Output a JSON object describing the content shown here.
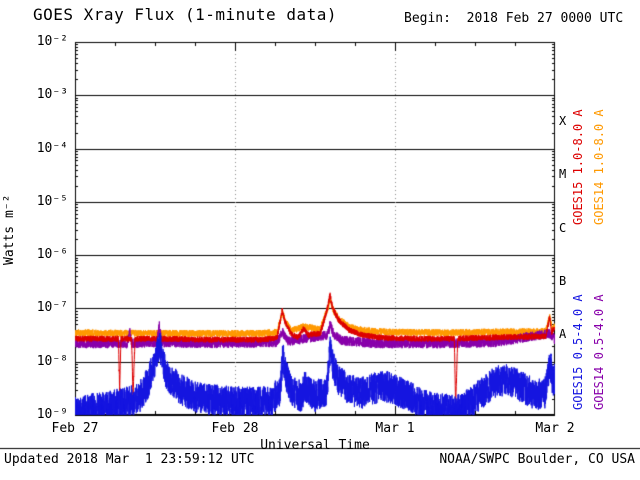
{
  "header": {
    "title": "GOES Xray Flux (1-minute data)",
    "begin_label": "Begin:  2018 Feb 27 0000 UTC"
  },
  "footer": {
    "updated": "Updated 2018 Mar  1 23:59:12 UTC",
    "credit": "NOAA/SWPC Boulder, CO USA"
  },
  "chart_data": {
    "type": "line",
    "title": "GOES Xray Flux (1-minute data)",
    "xlabel": "Universal Time",
    "ylabel": "Watts m⁻²",
    "x_range_hours": [
      0,
      72
    ],
    "y_range_log10": [
      -9,
      -2
    ],
    "y_scale": "log",
    "grid": {
      "horizontal": "solid line per decade",
      "vertical": "dotted at day boundaries"
    },
    "x_ticks": [
      {
        "hour": 0,
        "label": "Feb 27"
      },
      {
        "hour": 24,
        "label": "Feb 28"
      },
      {
        "hour": 48,
        "label": "Mar 1"
      },
      {
        "hour": 72,
        "label": "Mar 2"
      }
    ],
    "y_ticks": [
      {
        "exp": -2,
        "label": "10⁻²"
      },
      {
        "exp": -3,
        "label": "10⁻³"
      },
      {
        "exp": -4,
        "label": "10⁻⁴"
      },
      {
        "exp": -5,
        "label": "10⁻⁵"
      },
      {
        "exp": -6,
        "label": "10⁻⁶"
      },
      {
        "exp": -7,
        "label": "10⁻⁷"
      },
      {
        "exp": -8,
        "label": "10⁻⁸"
      },
      {
        "exp": -9,
        "label": "10⁻⁹"
      }
    ],
    "flux_classes": [
      {
        "label": "X",
        "band_log10": [
          -4,
          -3
        ]
      },
      {
        "label": "M",
        "band_log10": [
          -5,
          -4
        ]
      },
      {
        "label": "C",
        "band_log10": [
          -6,
          -5
        ]
      },
      {
        "label": "B",
        "band_log10": [
          -7,
          -6
        ]
      },
      {
        "label": "A",
        "band_log10": [
          -8,
          -7
        ]
      }
    ],
    "series": [
      {
        "name": "GOES14 1.0-8.0 A",
        "color": "#ff9900",
        "noise_log10": 0.065,
        "keypoints": [
          [
            0,
            3.5e-08
          ],
          [
            10,
            3.4e-08
          ],
          [
            20,
            3.4e-08
          ],
          [
            28,
            3.4e-08
          ],
          [
            30.3,
            3.6e-08
          ],
          [
            31.1,
            8.5e-08
          ],
          [
            31.6,
            5.5e-08
          ],
          [
            32.5,
            3.8e-08
          ],
          [
            34.3,
            4.6e-08
          ],
          [
            36.8,
            4e-08
          ],
          [
            37.9,
            1e-07
          ],
          [
            38.3,
            1.5e-07
          ],
          [
            38.7,
            9.5e-08
          ],
          [
            39.5,
            6.5e-08
          ],
          [
            41,
            4.6e-08
          ],
          [
            43,
            3.9e-08
          ],
          [
            47,
            3.6e-08
          ],
          [
            55,
            3.5e-08
          ],
          [
            62,
            3.6e-08
          ],
          [
            70.6,
            3.7e-08
          ],
          [
            71.2,
            7e-08
          ],
          [
            71.6,
            4.2e-08
          ],
          [
            72,
            5e-08
          ]
        ]
      },
      {
        "name": "GOES14 0.5-4.0 A",
        "color": "#8800aa",
        "noise_log10": 0.09,
        "keypoints": [
          [
            0,
            2.2e-08
          ],
          [
            7.9,
            2.2e-08
          ],
          [
            8.2,
            3.8e-08
          ],
          [
            8.5,
            2.2e-08
          ],
          [
            12.3,
            2.3e-08
          ],
          [
            12.65,
            4.8e-08
          ],
          [
            13.0,
            2.3e-08
          ],
          [
            20,
            2.2e-08
          ],
          [
            30.3,
            2.3e-08
          ],
          [
            31.1,
            3.6e-08
          ],
          [
            32,
            2.4e-08
          ],
          [
            37.9,
            3.2e-08
          ],
          [
            38.3,
            5e-08
          ],
          [
            38.8,
            3.2e-08
          ],
          [
            40,
            2.5e-08
          ],
          [
            45,
            2.2e-08
          ],
          [
            55,
            2.2e-08
          ],
          [
            63,
            2.3e-08
          ],
          [
            71.2,
            3.4e-08
          ],
          [
            72,
            2.6e-08
          ]
        ]
      },
      {
        "name": "GOES15 1.0-8.0 A",
        "color": "#dd0000",
        "noise_log10": 0.055,
        "keypoints": [
          [
            0,
            2.7e-08
          ],
          [
            6.5,
            2.7e-08
          ],
          [
            6.7,
            3e-09
          ],
          [
            6.9,
            2.7e-08
          ],
          [
            8.5,
            2.7e-08
          ],
          [
            8.7,
            2.2e-09
          ],
          [
            9.0,
            2.7e-08
          ],
          [
            12.4,
            2.7e-08
          ],
          [
            12.7,
            1.6e-08
          ],
          [
            13.0,
            2.7e-08
          ],
          [
            20,
            2.6e-08
          ],
          [
            28,
            2.6e-08
          ],
          [
            30.3,
            2.8e-08
          ],
          [
            31.1,
            9.5e-08
          ],
          [
            31.5,
            5.5e-08
          ],
          [
            32.5,
            3.2e-08
          ],
          [
            33.5,
            2.9e-08
          ],
          [
            34.3,
            4.2e-08
          ],
          [
            35,
            3.2e-08
          ],
          [
            36.8,
            3.4e-08
          ],
          [
            37.9,
            1.05e-07
          ],
          [
            38.25,
            1.8e-07
          ],
          [
            38.6,
            1.05e-07
          ],
          [
            39.5,
            6.2e-08
          ],
          [
            41,
            4e-08
          ],
          [
            43,
            3.2e-08
          ],
          [
            46,
            2.8e-08
          ],
          [
            52,
            2.7e-08
          ],
          [
            56.9,
            2.7e-08
          ],
          [
            57.1,
            1.4e-09
          ],
          [
            57.4,
            2.7e-08
          ],
          [
            60,
            2.8e-08
          ],
          [
            65,
            2.9e-08
          ],
          [
            70.6,
            3e-08
          ],
          [
            71.2,
            6.8e-08
          ],
          [
            71.5,
            3.6e-08
          ],
          [
            72,
            4.5e-08
          ]
        ]
      },
      {
        "name": "GOES15 0.5-4.0 A",
        "color": "#1515e0",
        "noise_log10": 0.3,
        "keypoints": [
          [
            0,
            1.1e-09
          ],
          [
            1.5,
            1.2e-09
          ],
          [
            4,
            1.4e-09
          ],
          [
            7,
            1.6e-09
          ],
          [
            9.5,
            2e-09
          ],
          [
            11,
            4e-09
          ],
          [
            12.2,
            1.3e-08
          ],
          [
            12.7,
            2.2e-08
          ],
          [
            13.2,
            9e-09
          ],
          [
            14,
            5e-09
          ],
          [
            16,
            3e-09
          ],
          [
            18,
            2.2e-09
          ],
          [
            22,
            1.8e-09
          ],
          [
            26,
            1.7e-09
          ],
          [
            29.5,
            1.8e-09
          ],
          [
            30.8,
            3e-09
          ],
          [
            31.15,
            1.3e-08
          ],
          [
            31.6,
            6e-09
          ],
          [
            32.5,
            2.8e-09
          ],
          [
            34,
            2.2e-09
          ],
          [
            34.4,
            3.5e-09
          ],
          [
            36,
            2.2e-09
          ],
          [
            37.8,
            3e-09
          ],
          [
            38.2,
            1.7e-08
          ],
          [
            38.7,
            8e-09
          ],
          [
            39.5,
            4.5e-09
          ],
          [
            41,
            3e-09
          ],
          [
            43,
            2.6e-09
          ],
          [
            45,
            3.2e-09
          ],
          [
            47,
            3.4e-09
          ],
          [
            49,
            2.6e-09
          ],
          [
            51,
            1.9e-09
          ],
          [
            53,
            1.4e-09
          ],
          [
            55,
            1.3e-09
          ],
          [
            57,
            1.2e-09
          ],
          [
            59,
            1.6e-09
          ],
          [
            61,
            2.6e-09
          ],
          [
            63,
            4.2e-09
          ],
          [
            65,
            4.6e-09
          ],
          [
            67,
            3.4e-09
          ],
          [
            69,
            2.4e-09
          ],
          [
            70.5,
            2.6e-09
          ],
          [
            71.3,
            9e-09
          ],
          [
            71.7,
            4e-09
          ],
          [
            72,
            5e-09
          ]
        ]
      }
    ],
    "legend_position": "right side, rotated vertical labels"
  }
}
